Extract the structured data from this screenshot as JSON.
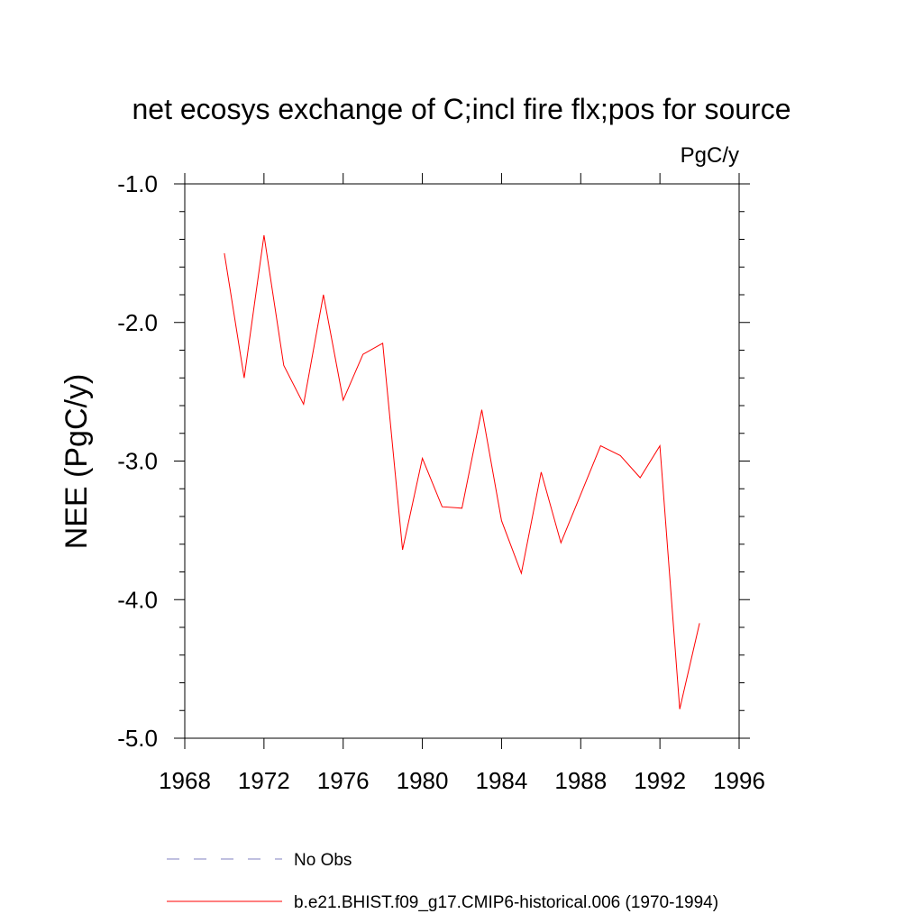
{
  "chart_data": {
    "type": "line",
    "title": "net ecosys exchange of C;incl fire flx;pos for source",
    "units": "PgC/y",
    "ylabel": "NEE  (PgC/y)",
    "xlabel": "",
    "xlim": [
      1968,
      1996
    ],
    "ylim": [
      -5.0,
      -1.0
    ],
    "x_ticks": [
      1968,
      1972,
      1976,
      1980,
      1984,
      1988,
      1992,
      1996
    ],
    "x_tick_labels": [
      "1968",
      "1972",
      "1976",
      "1980",
      "1984",
      "1988",
      "1992",
      "1996"
    ],
    "y_ticks": [
      -1.0,
      -2.0,
      -3.0,
      -4.0,
      -5.0
    ],
    "y_tick_labels": [
      "-1.0",
      "-2.0",
      "-3.0",
      "-4.0",
      "-5.0"
    ],
    "grid": false,
    "legend_position": "bottom",
    "series": [
      {
        "name": "b.e21.BHIST.f09_g17.CMIP6-historical.006 (1970-1994)",
        "color": "#ff0000",
        "line_style": "solid",
        "x": [
          1970,
          1971,
          1972,
          1973,
          1974,
          1975,
          1976,
          1977,
          1978,
          1979,
          1980,
          1981,
          1982,
          1983,
          1984,
          1985,
          1986,
          1987,
          1988,
          1989,
          1990,
          1991,
          1992,
          1993,
          1994
        ],
        "y": [
          -1.5,
          -2.4,
          -1.37,
          -2.31,
          -2.59,
          -1.8,
          -2.56,
          -2.23,
          -2.15,
          -3.64,
          -2.98,
          -3.33,
          -3.34,
          -2.63,
          -3.43,
          -3.81,
          -3.08,
          -3.59,
          -3.24,
          -2.89,
          -2.96,
          -3.12,
          -2.89,
          -4.79,
          -4.17
        ]
      }
    ],
    "legend": [
      {
        "label": "No Obs",
        "color": "#8080c0",
        "line_style": "dashed"
      },
      {
        "label": "b.e21.BHIST.f09_g17.CMIP6-historical.006 (1970-1994)",
        "color": "#ff0000",
        "line_style": "solid"
      }
    ]
  }
}
